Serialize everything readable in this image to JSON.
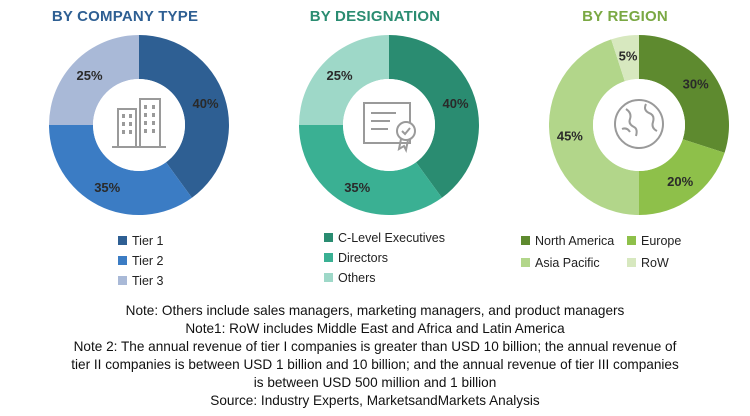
{
  "chart_data": [
    {
      "type": "pie",
      "title": "BY COMPANY TYPE",
      "title_color": "#2E5F93",
      "center_icon": "buildings-icon",
      "slices": [
        {
          "label": "Tier 1",
          "value": 40,
          "display": "40%",
          "color": "#2E5F93"
        },
        {
          "label": "Tier 2",
          "value": 35,
          "display": "35%",
          "color": "#3B7CC4"
        },
        {
          "label": "Tier 3",
          "value": 25,
          "display": "25%",
          "color": "#A9B9D7"
        }
      ],
      "legend": [
        {
          "label": "Tier 1",
          "color": "#2E5F93"
        },
        {
          "label": "Tier 2",
          "color": "#3B7CC4"
        },
        {
          "label": "Tier 3",
          "color": "#A9B9D7"
        }
      ]
    },
    {
      "type": "pie",
      "title": "BY DESIGNATION",
      "title_color": "#2A8C71",
      "center_icon": "certificate-icon",
      "slices": [
        {
          "label": "C-Level Executives",
          "value": 40,
          "display": "40%",
          "color": "#2A8C71"
        },
        {
          "label": "Directors",
          "value": 35,
          "display": "35%",
          "color": "#3AB093"
        },
        {
          "label": "Others",
          "value": 25,
          "display": "25%",
          "color": "#9ED8C8"
        }
      ],
      "legend": [
        {
          "label": "C-Level Executives",
          "color": "#2A8C71"
        },
        {
          "label": "Directors",
          "color": "#3AB093"
        },
        {
          "label": "Others",
          "color": "#9ED8C8"
        }
      ]
    },
    {
      "type": "pie",
      "title": "BY REGION",
      "title_color": "#7AA843",
      "center_icon": "globe-icon",
      "slices": [
        {
          "label": "North America",
          "value": 30,
          "display": "30%",
          "color": "#5E8A2F"
        },
        {
          "label": "Europe",
          "value": 20,
          "display": "20%",
          "color": "#8EC04A"
        },
        {
          "label": "Asia Pacific",
          "value": 45,
          "display": "45%",
          "color": "#B2D68A"
        },
        {
          "label": "RoW",
          "value": 5,
          "display": "5%",
          "color": "#D7E8BF"
        }
      ],
      "legend": [
        {
          "label": "North America",
          "color": "#5E8A2F"
        },
        {
          "label": "Europe",
          "color": "#8EC04A"
        },
        {
          "label": "Asia Pacific",
          "color": "#B2D68A"
        },
        {
          "label": "RoW",
          "color": "#D7E8BF"
        }
      ]
    }
  ],
  "notes": {
    "note": "Note: Others include sales managers, marketing managers, and product managers",
    "note1": "Note1: RoW includes Middle East and Africa and Latin America",
    "note2_line1": "Note 2: The annual revenue of tier I companies is greater than USD 10 billion; the annual revenue of",
    "note2_line2": "tier II companies is between USD 1 billion and 10 billion; and the annual revenue of tier III companies",
    "note2_line3": "is between USD 500 million and 1 billion",
    "source": "Source: Industry Experts, MarketsandMarkets Analysis"
  }
}
